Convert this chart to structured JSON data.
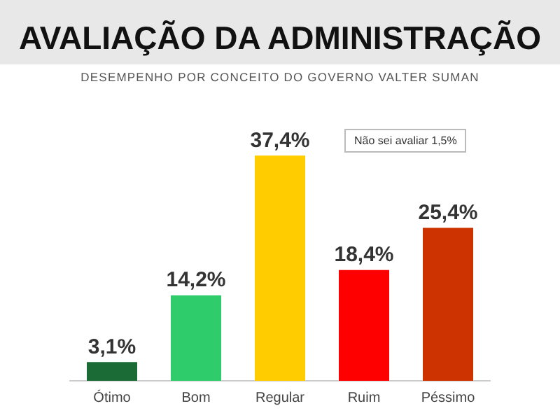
{
  "chart_data": {
    "type": "bar",
    "title": "AVALIAÇÃO DA ADMINISTRAÇÃO",
    "subtitle": "DESEMPENHO POR CONCEITO DO GOVERNO VALTER SUMAN",
    "categories": [
      "Ótimo",
      "Bom",
      "Regular",
      "Ruim",
      "Péssimo"
    ],
    "values": [
      3.1,
      14.2,
      37.4,
      18.4,
      25.4
    ],
    "colors": [
      "#1a6b35",
      "#2ecc6a",
      "#ffcc00",
      "#ff0000",
      "#cc3300"
    ],
    "value_labels": [
      "3,1%",
      "14,2%",
      "37,4%",
      "18,4%",
      "25,4%"
    ],
    "annotations": [
      "Não sei avaliar 1,5%"
    ],
    "grid": false,
    "legend": false
  }
}
